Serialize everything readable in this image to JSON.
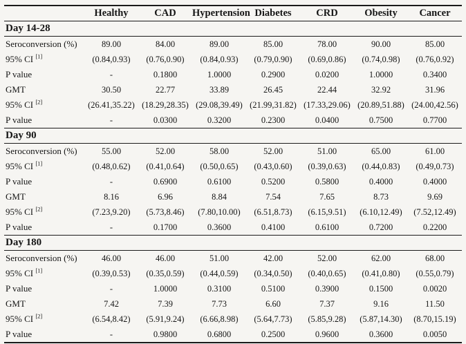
{
  "colors": {
    "background": "#f6f5f2",
    "text": "#161616",
    "rule": "#1a1a1a"
  },
  "table": {
    "row_label_header": "",
    "columns": [
      "Healthy",
      "CAD",
      "Hypertension",
      "Diabetes",
      "CRD",
      "Obesity",
      "Cancer"
    ],
    "sections": [
      {
        "title": "Day 14-28",
        "rows": [
          {
            "label": "Seroconversion (%)",
            "sup": "",
            "values": [
              "89.00",
              "84.00",
              "89.00",
              "85.00",
              "78.00",
              "90.00",
              "85.00"
            ]
          },
          {
            "label": "95% CI ",
            "sup": "[1]",
            "values": [
              "(0.84,0.93)",
              "(0.76,0.90)",
              "(0.84,0.93)",
              "(0.79,0.90)",
              "(0.69,0.86)",
              "(0.74,0.98)",
              "(0.76,0.92)"
            ]
          },
          {
            "label": "P value",
            "sup": "",
            "values": [
              "-",
              "0.1800",
              "1.0000",
              "0.2900",
              "0.0200",
              "1.0000",
              "0.3400"
            ]
          },
          {
            "label": "GMT",
            "sup": "",
            "values": [
              "30.50",
              "22.77",
              "33.89",
              "26.45",
              "22.44",
              "32.92",
              "31.96"
            ]
          },
          {
            "label": "95% CI ",
            "sup": "[2]",
            "values": [
              "(26.41,35.22)",
              "(18.29,28.35)",
              "(29.08,39.49)",
              "(21.99,31.82)",
              "(17.33,29.06)",
              "(20.89,51.88)",
              "(24.00,42.56)"
            ]
          },
          {
            "label": "P value",
            "sup": "",
            "values": [
              "-",
              "0.0300",
              "0.3200",
              "0.2300",
              "0.0400",
              "0.7500",
              "0.7700"
            ]
          }
        ]
      },
      {
        "title": "Day 90",
        "rows": [
          {
            "label": "Seroconversion (%)",
            "sup": "",
            "values": [
              "55.00",
              "52.00",
              "58.00",
              "52.00",
              "51.00",
              "65.00",
              "61.00"
            ]
          },
          {
            "label": "95% CI ",
            "sup": "[1]",
            "values": [
              "(0.48,0.62)",
              "(0.41,0.64)",
              "(0.50,0.65)",
              "(0.43,0.60)",
              "(0.39,0.63)",
              "(0.44,0.83)",
              "(0.49,0.73)"
            ]
          },
          {
            "label": "P value",
            "sup": "",
            "values": [
              "-",
              "0.6900",
              "0.6100",
              "0.5200",
              "0.5800",
              "0.4000",
              "0.4000"
            ]
          },
          {
            "label": "GMT",
            "sup": "",
            "values": [
              "8.16",
              "6.96",
              "8.84",
              "7.54",
              "7.65",
              "8.73",
              "9.69"
            ]
          },
          {
            "label": "95% CI ",
            "sup": "[2]",
            "values": [
              "(7.23,9.20)",
              "(5.73,8.46)",
              "(7.80,10.00)",
              "(6.51,8.73)",
              "(6.15,9.51)",
              "(6.10,12.49)",
              "(7.52,12.49)"
            ]
          },
          {
            "label": "P value",
            "sup": "",
            "values": [
              "-",
              "0.1700",
              "0.3600",
              "0.4100",
              "0.6100",
              "0.7200",
              "0.2200"
            ]
          }
        ]
      },
      {
        "title": "Day 180",
        "rows": [
          {
            "label": "Seroconversion (%)",
            "sup": "",
            "values": [
              "46.00",
              "46.00",
              "51.00",
              "42.00",
              "52.00",
              "62.00",
              "68.00"
            ]
          },
          {
            "label": "95% CI ",
            "sup": "[1]",
            "values": [
              "(0.39,0.53)",
              "(0.35,0.59)",
              "(0.44,0.59)",
              "(0.34,0.50)",
              "(0.40,0.65)",
              "(0.41,0.80)",
              "(0.55,0.79)"
            ]
          },
          {
            "label": "P value",
            "sup": "",
            "values": [
              "-",
              "1.0000",
              "0.3100",
              "0.5100",
              "0.3900",
              "0.1500",
              "0.0020"
            ]
          },
          {
            "label": "GMT",
            "sup": "",
            "values": [
              "7.42",
              "7.39",
              "7.73",
              "6.60",
              "7.37",
              "9.16",
              "11.50"
            ]
          },
          {
            "label": "95% CI ",
            "sup": "[2]",
            "values": [
              "(6.54,8.42)",
              "(5.91,9.24)",
              "(6.66,8.98)",
              "(5.64,7.73)",
              "(5.85,9.28)",
              "(5.87,14.30)",
              "(8.70,15.19)"
            ]
          },
          {
            "label": "P value",
            "sup": "",
            "values": [
              "-",
              "0.9800",
              "0.6800",
              "0.2500",
              "0.9600",
              "0.3600",
              "0.0050"
            ]
          }
        ]
      }
    ]
  }
}
